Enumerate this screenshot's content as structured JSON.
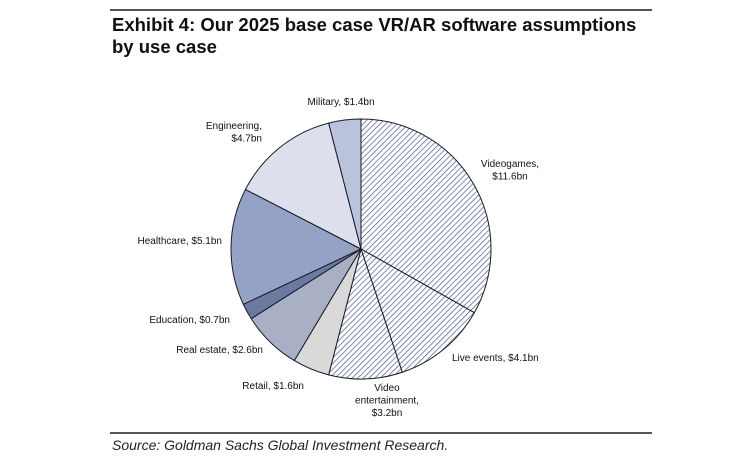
{
  "title": "Exhibit 4: Our 2025 base case VR/AR software assumptions by use case",
  "source": "Source: Goldman Sachs Global Investment Research.",
  "chart_data": {
    "type": "pie",
    "title": "Exhibit 4: Our 2025 base case VR/AR software assumptions by use case",
    "unit": "$bn",
    "start": "12 o'clock, clockwise",
    "slices": [
      {
        "name": "Videogames",
        "value": 11.6,
        "label": [
          "Videogames,",
          "$11.6bn"
        ],
        "fill": "hatch",
        "color": "#3f4f85"
      },
      {
        "name": "Live events",
        "value": 4.1,
        "label": [
          "Live events, $4.1bn"
        ],
        "fill": "hatch",
        "color": "#3f4f85"
      },
      {
        "name": "Video entertainment",
        "value": 3.2,
        "label": [
          "Video",
          "entertainment,",
          "$3.2bn"
        ],
        "fill": "hatch",
        "color": "#3f4f85"
      },
      {
        "name": "Retail",
        "value": 1.6,
        "label": [
          "Retail, $1.6bn"
        ],
        "fill": "solid",
        "color": "#d9d9d9"
      },
      {
        "name": "Real estate",
        "value": 2.6,
        "label": [
          "Real estate, $2.6bn"
        ],
        "fill": "solid",
        "color": "#a9b0c5"
      },
      {
        "name": "Education",
        "value": 0.7,
        "label": [
          "Education, $0.7bn"
        ],
        "fill": "solid",
        "color": "#6b7aa0"
      },
      {
        "name": "Healthcare",
        "value": 5.1,
        "label": [
          "Healthcare, $5.1bn"
        ],
        "fill": "solid",
        "color": "#94a2c6"
      },
      {
        "name": "Engineering",
        "value": 4.7,
        "label": [
          "Engineering,",
          "$4.7bn"
        ],
        "fill": "solid",
        "color": "#dde0ec"
      },
      {
        "name": "Military",
        "value": 1.4,
        "label": [
          "Military, $1.4bn"
        ],
        "fill": "solid",
        "color": "#b9c3db"
      }
    ]
  }
}
